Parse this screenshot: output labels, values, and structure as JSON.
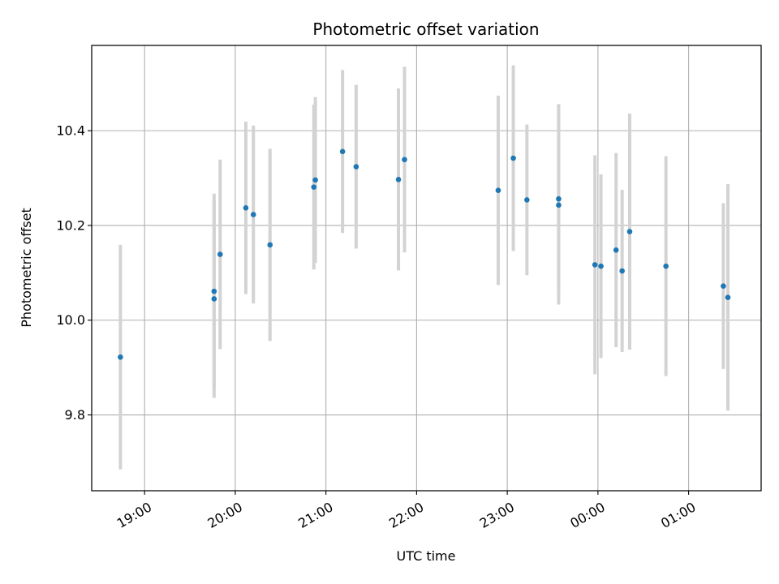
{
  "chart_data": {
    "type": "scatter",
    "title": "Photometric offset variation",
    "xlabel": "UTC time",
    "ylabel": "Photometric offset",
    "x_ticks": [
      "19:00",
      "20:00",
      "21:00",
      "22:00",
      "23:00",
      "00:00",
      "01:00"
    ],
    "y_ticks": [
      "9.8",
      "10.0",
      "10.2",
      "10.4"
    ],
    "y_tick_values": [
      9.8,
      10.0,
      10.2,
      10.4
    ],
    "ylim": [
      9.64,
      10.58
    ],
    "xlim": [
      "2000-01-01T18:25",
      "2000-01-02T01:48"
    ],
    "x_tick_times": [
      "2000-01-01T19:00",
      "2000-01-01T20:00",
      "2000-01-01T21:00",
      "2000-01-01T22:00",
      "2000-01-01T23:00",
      "2000-01-02T00:00",
      "2000-01-02T01:00"
    ],
    "grid": true,
    "marker_color": "#1f77b4",
    "errorbar_color": "#d3d3d3",
    "points": [
      {
        "t": "2000-01-01T18:44",
        "y": 9.922,
        "err": 0.237
      },
      {
        "t": "2000-01-01T19:46",
        "y": 10.045,
        "err": 0.209
      },
      {
        "t": "2000-01-01T19:46",
        "y": 10.061,
        "err": 0.206
      },
      {
        "t": "2000-01-01T19:50",
        "y": 10.139,
        "err": 0.2
      },
      {
        "t": "2000-01-01T20:07",
        "y": 10.237,
        "err": 0.182
      },
      {
        "t": "2000-01-01T20:12",
        "y": 10.223,
        "err": 0.188
      },
      {
        "t": "2000-01-01T20:23",
        "y": 10.159,
        "err": 0.203
      },
      {
        "t": "2000-01-01T20:52",
        "y": 10.281,
        "err": 0.174
      },
      {
        "t": "2000-01-01T20:53",
        "y": 10.296,
        "err": 0.175
      },
      {
        "t": "2000-01-01T21:11",
        "y": 10.356,
        "err": 0.172
      },
      {
        "t": "2000-01-01T21:20",
        "y": 10.324,
        "err": 0.173
      },
      {
        "t": "2000-01-01T21:48",
        "y": 10.297,
        "err": 0.192
      },
      {
        "t": "2000-01-01T21:52",
        "y": 10.339,
        "err": 0.196
      },
      {
        "t": "2000-01-01T22:54",
        "y": 10.274,
        "err": 0.2
      },
      {
        "t": "2000-01-01T23:04",
        "y": 10.342,
        "err": 0.196
      },
      {
        "t": "2000-01-01T23:13",
        "y": 10.254,
        "err": 0.159
      },
      {
        "t": "2000-01-01T23:34",
        "y": 10.256,
        "err": 0.2
      },
      {
        "t": "2000-01-01T23:34",
        "y": 10.243,
        "err": 0.21
      },
      {
        "t": "2000-01-01T23:58",
        "y": 10.117,
        "err": 0.231
      },
      {
        "t": "2000-01-02T00:02",
        "y": 10.114,
        "err": 0.194
      },
      {
        "t": "2000-01-02T00:12",
        "y": 10.148,
        "err": 0.205
      },
      {
        "t": "2000-01-02T00:16",
        "y": 10.104,
        "err": 0.171
      },
      {
        "t": "2000-01-02T00:21",
        "y": 10.187,
        "err": 0.249
      },
      {
        "t": "2000-01-02T00:45",
        "y": 10.114,
        "err": 0.232
      },
      {
        "t": "2000-01-02T01:23",
        "y": 10.072,
        "err": 0.175
      },
      {
        "t": "2000-01-02T01:26",
        "y": 10.048,
        "err": 0.239
      }
    ]
  }
}
